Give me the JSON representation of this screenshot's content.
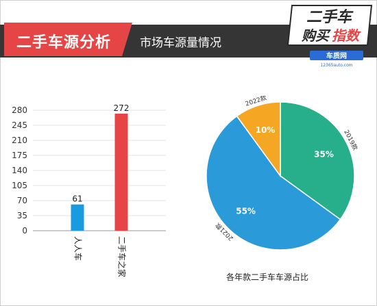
{
  "header": {
    "section_title": "二手车源分析",
    "subtitle": "市场车源量情况"
  },
  "badge": {
    "line1": "二手车",
    "line2_a": "购买",
    "line2_b": "指数",
    "brand_name": "车质网",
    "brand_url": "12365auto.com",
    "colors": {
      "dark": "#2a2a2a",
      "red": "#e64545",
      "blue": "#2a6bd6"
    }
  },
  "chart_data": [
    {
      "type": "bar",
      "categories": [
        "人人车",
        "二手车之家"
      ],
      "values": [
        61,
        272
      ],
      "colors": [
        "#1a9be0",
        "#e64545"
      ],
      "yticks": [
        0,
        35,
        70,
        105,
        140,
        175,
        210,
        245,
        280
      ],
      "ylim": [
        0,
        280
      ],
      "grid": true
    },
    {
      "type": "pie",
      "title": "各年款二手车车源占比",
      "slices": [
        {
          "label": "2019款",
          "value": 35,
          "text": "35%",
          "color": "#27ae8a"
        },
        {
          "label": "2021款",
          "value": 55,
          "text": "55%",
          "color": "#2a9ad9"
        },
        {
          "label": "2022款",
          "value": 10,
          "text": "10%",
          "color": "#f5a623"
        }
      ]
    }
  ]
}
